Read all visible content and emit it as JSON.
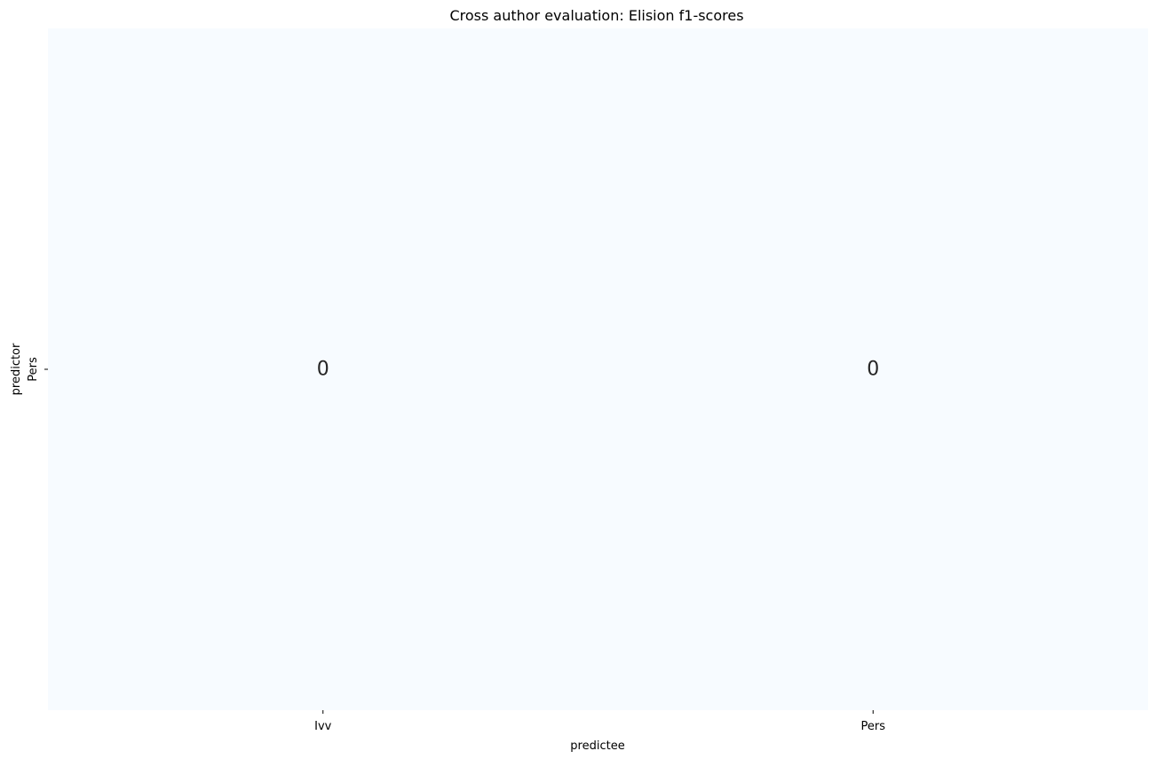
{
  "chart_data": {
    "type": "heatmap",
    "title": "Cross author evaluation: Elision f1-scores",
    "xlabel": "predictee",
    "ylabel": "predictor",
    "x_categories": [
      "Ivv",
      "Pers"
    ],
    "y_categories": [
      "Pers"
    ],
    "values": [
      [
        0,
        0
      ]
    ],
    "cell_labels": [
      [
        "0",
        "0"
      ]
    ],
    "cell_color": "#f7fbff",
    "colormap": "Blues",
    "colorbar": false,
    "grid": false
  }
}
